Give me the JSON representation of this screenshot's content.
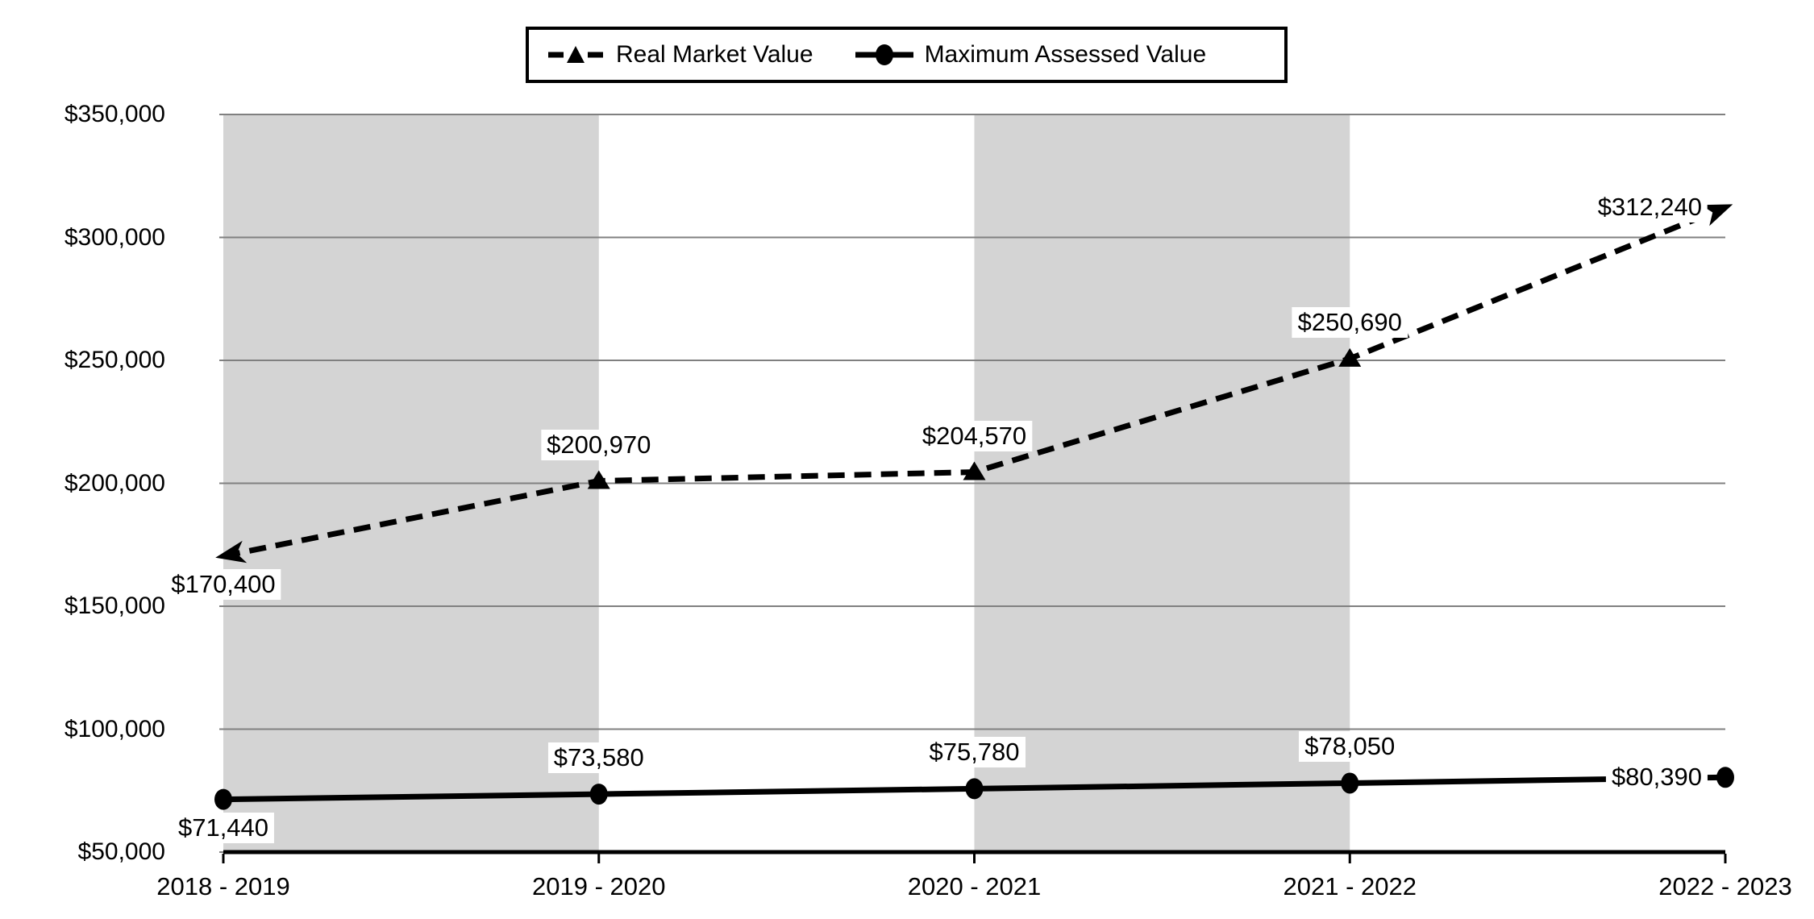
{
  "chart_data": {
    "type": "line",
    "title": "",
    "xlabel": "",
    "ylabel": "",
    "categories": [
      "2018 - 2019",
      "2019 - 2020",
      "2020 - 2021",
      "2021 - 2022",
      "2022 - 2023"
    ],
    "series": [
      {
        "name": "Real Market Value",
        "line_style": "dashed",
        "marker": "triangle",
        "values": [
          170400,
          200970,
          204570,
          250690,
          312240
        ],
        "labels": [
          "$170,400",
          "$200,970",
          "$204,570",
          "$250,690",
          "$312,240"
        ]
      },
      {
        "name": "Maximum Assessed Value",
        "line_style": "solid",
        "marker": "circle",
        "values": [
          71440,
          73580,
          75780,
          78050,
          80390
        ],
        "labels": [
          "$71,440",
          "$73,580",
          "$75,780",
          "$78,050",
          "$80,390"
        ]
      }
    ],
    "y_ticks": [
      "$350,000",
      "$300,000",
      "$250,000",
      "$200,000",
      "$150,000",
      "$100,000",
      "$50,000"
    ],
    "ylim": [
      50000,
      350000
    ],
    "grid": true,
    "legend_position": "top",
    "shaded_bands": [
      [
        0,
        1
      ],
      [
        2,
        3
      ]
    ],
    "colors": {
      "series": "#000000",
      "band": "#d4d4d4",
      "gridline": "#808080",
      "axis": "#000000",
      "label_bg": "#ffffff",
      "background": "#ffffff"
    }
  }
}
